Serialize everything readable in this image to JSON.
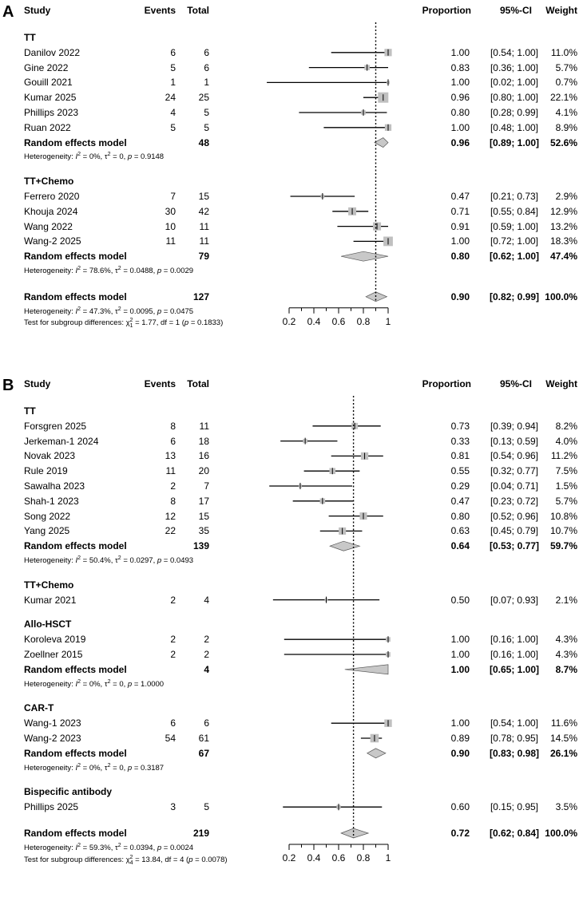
{
  "chart_data": [
    {
      "type": "forest",
      "panel": "A",
      "headers": {
        "study": "Study",
        "events": "Events",
        "total": "Total",
        "proportion": "Proportion",
        "ci": "95%-CI",
        "weight": "Weight"
      },
      "xlim": [
        0.2,
        1.0
      ],
      "ticks": [
        "0.2",
        "0.4",
        "0.6",
        "0.8",
        "1"
      ],
      "tick_values": [
        0.2,
        0.4,
        0.6,
        0.8,
        1.0
      ],
      "reference_line": 0.9,
      "subgroups": [
        {
          "name": "TT",
          "studies": [
            {
              "study": "Danilov 2022",
              "events": "6",
              "total": "6",
              "est": 1.0,
              "lo": 0.54,
              "hi": 1.0,
              "w": 11.0,
              "prop": "1.00",
              "ci": "[0.54; 1.00]",
              "weight": "11.0%"
            },
            {
              "study": "Gine 2022",
              "events": "5",
              "total": "6",
              "est": 0.83,
              "lo": 0.36,
              "hi": 1.0,
              "w": 5.7,
              "prop": "0.83",
              "ci": "[0.36; 1.00]",
              "weight": "5.7%"
            },
            {
              "study": "Gouill 2021",
              "events": "1",
              "total": "1",
              "est": 1.0,
              "lo": 0.02,
              "hi": 1.0,
              "w": 0.7,
              "prop": "1.00",
              "ci": "[0.02; 1.00]",
              "weight": "0.7%"
            },
            {
              "study": "Kumar 2025",
              "events": "24",
              "total": "25",
              "est": 0.96,
              "lo": 0.8,
              "hi": 1.0,
              "w": 22.1,
              "prop": "0.96",
              "ci": "[0.80; 1.00]",
              "weight": "22.1%"
            },
            {
              "study": "Phillips 2023",
              "events": "4",
              "total": "5",
              "est": 0.8,
              "lo": 0.28,
              "hi": 0.99,
              "w": 4.1,
              "prop": "0.80",
              "ci": "[0.28; 0.99]",
              "weight": "4.1%"
            },
            {
              "study": "Ruan 2022",
              "events": "5",
              "total": "5",
              "est": 1.0,
              "lo": 0.48,
              "hi": 1.0,
              "w": 8.9,
              "prop": "1.00",
              "ci": "[0.48; 1.00]",
              "weight": "8.9%"
            }
          ],
          "pooled": {
            "label": "Random effects model",
            "total": "48",
            "est": 0.96,
            "lo": 0.89,
            "hi": 1.0,
            "prop": "0.96",
            "ci": "[0.89; 1.00]",
            "weight": "52.6%"
          },
          "heterogeneity": {
            "prefix": "Heterogeneity: ",
            "i2": "0%",
            "tau2": "0",
            "p": "0.9148"
          }
        },
        {
          "name": "TT+Chemo",
          "studies": [
            {
              "study": "Ferrero 2020",
              "events": "7",
              "total": "15",
              "est": 0.47,
              "lo": 0.21,
              "hi": 0.73,
              "w": 2.9,
              "prop": "0.47",
              "ci": "[0.21; 0.73]",
              "weight": "2.9%"
            },
            {
              "study": "Khouja 2024",
              "events": "30",
              "total": "42",
              "est": 0.71,
              "lo": 0.55,
              "hi": 0.84,
              "w": 12.9,
              "prop": "0.71",
              "ci": "[0.55; 0.84]",
              "weight": "12.9%"
            },
            {
              "study": "Wang 2022",
              "events": "10",
              "total": "11",
              "est": 0.91,
              "lo": 0.59,
              "hi": 1.0,
              "w": 13.2,
              "prop": "0.91",
              "ci": "[0.59; 1.00]",
              "weight": "13.2%"
            },
            {
              "study": "Wang-2 2025",
              "events": "11",
              "total": "11",
              "est": 1.0,
              "lo": 0.72,
              "hi": 1.0,
              "w": 18.3,
              "prop": "1.00",
              "ci": "[0.72; 1.00]",
              "weight": "18.3%"
            }
          ],
          "pooled": {
            "label": "Random effects model",
            "total": "79",
            "est": 0.8,
            "lo": 0.62,
            "hi": 1.0,
            "prop": "0.80",
            "ci": "[0.62; 1.00]",
            "weight": "47.4%"
          },
          "heterogeneity": {
            "prefix": "Heterogeneity: ",
            "i2": "78.6%",
            "tau2": "0.0488",
            "p": "0.0029"
          }
        }
      ],
      "overall": {
        "label": "Random effects model",
        "total": "127",
        "est": 0.9,
        "lo": 0.82,
        "hi": 0.99,
        "prop": "0.90",
        "ci": "[0.82; 0.99]",
        "weight": "100.0%"
      },
      "overall_heterogeneity": {
        "prefix": "Heterogeneity: ",
        "i2": "47.3%",
        "tau2": "0.0095",
        "p": "0.0475"
      },
      "subgroup_test": {
        "prefix": "Test for subgroup differences: ",
        "chi_sub": "1",
        "chi2": "1.77",
        "df": "1",
        "p": "0.1833"
      }
    },
    {
      "type": "forest",
      "panel": "B",
      "headers": {
        "study": "Study",
        "events": "Events",
        "total": "Total",
        "proportion": "Proportion",
        "ci": "95%-CI",
        "weight": "Weight"
      },
      "xlim": [
        0.2,
        1.0
      ],
      "ticks": [
        "0.2",
        "0.4",
        "0.6",
        "0.8",
        "1"
      ],
      "tick_values": [
        0.2,
        0.4,
        0.6,
        0.8,
        1.0
      ],
      "reference_line": 0.72,
      "subgroups": [
        {
          "name": "TT",
          "studies": [
            {
              "study": "Forsgren 2025",
              "events": "8",
              "total": "11",
              "est": 0.73,
              "lo": 0.39,
              "hi": 0.94,
              "w": 8.2,
              "prop": "0.73",
              "ci": "[0.39; 0.94]",
              "weight": "8.2%"
            },
            {
              "study": "Jerkeman-1 2024",
              "events": "6",
              "total": "18",
              "est": 0.33,
              "lo": 0.13,
              "hi": 0.59,
              "w": 4.0,
              "prop": "0.33",
              "ci": "[0.13; 0.59]",
              "weight": "4.0%"
            },
            {
              "study": "Novak 2023",
              "events": "13",
              "total": "16",
              "est": 0.81,
              "lo": 0.54,
              "hi": 0.96,
              "w": 11.2,
              "prop": "0.81",
              "ci": "[0.54; 0.96]",
              "weight": "11.2%"
            },
            {
              "study": "Rule 2019",
              "events": "11",
              "total": "20",
              "est": 0.55,
              "lo": 0.32,
              "hi": 0.77,
              "w": 7.5,
              "prop": "0.55",
              "ci": "[0.32; 0.77]",
              "weight": "7.5%"
            },
            {
              "study": "Sawalha 2023",
              "events": "2",
              "total": "7",
              "est": 0.29,
              "lo": 0.04,
              "hi": 0.71,
              "w": 1.5,
              "prop": "0.29",
              "ci": "[0.04; 0.71]",
              "weight": "1.5%"
            },
            {
              "study": "Shah-1 2023",
              "events": "8",
              "total": "17",
              "est": 0.47,
              "lo": 0.23,
              "hi": 0.72,
              "w": 5.7,
              "prop": "0.47",
              "ci": "[0.23; 0.72]",
              "weight": "5.7%"
            },
            {
              "study": "Song 2022",
              "events": "12",
              "total": "15",
              "est": 0.8,
              "lo": 0.52,
              "hi": 0.96,
              "w": 10.8,
              "prop": "0.80",
              "ci": "[0.52; 0.96]",
              "weight": "10.8%"
            },
            {
              "study": "Yang 2025",
              "events": "22",
              "total": "35",
              "est": 0.63,
              "lo": 0.45,
              "hi": 0.79,
              "w": 10.7,
              "prop": "0.63",
              "ci": "[0.45; 0.79]",
              "weight": "10.7%"
            }
          ],
          "pooled": {
            "label": "Random effects model",
            "total": "139",
            "est": 0.64,
            "lo": 0.53,
            "hi": 0.77,
            "prop": "0.64",
            "ci": "[0.53; 0.77]",
            "weight": "59.7%"
          },
          "heterogeneity": {
            "prefix": "Heterogeneity: ",
            "i2": "50.4%",
            "tau2": "0.0297",
            "p": "0.0493"
          }
        },
        {
          "name": "TT+Chemo",
          "studies": [
            {
              "study": "Kumar 2021",
              "events": "2",
              "total": "4",
              "est": 0.5,
              "lo": 0.07,
              "hi": 0.93,
              "w": 2.1,
              "prop": "0.50",
              "ci": "[0.07; 0.93]",
              "weight": "2.1%"
            }
          ]
        },
        {
          "name": "Allo-HSCT",
          "studies": [
            {
              "study": "Koroleva 2019",
              "events": "2",
              "total": "2",
              "est": 1.0,
              "lo": 0.16,
              "hi": 1.0,
              "w": 4.3,
              "prop": "1.00",
              "ci": "[0.16; 1.00]",
              "weight": "4.3%"
            },
            {
              "study": "Zoellner 2015",
              "events": "2",
              "total": "2",
              "est": 1.0,
              "lo": 0.16,
              "hi": 1.0,
              "w": 4.3,
              "prop": "1.00",
              "ci": "[0.16; 1.00]",
              "weight": "4.3%"
            }
          ],
          "pooled": {
            "label": "Random effects model",
            "total": "4",
            "est": 1.0,
            "lo": 0.65,
            "hi": 1.0,
            "prop": "1.00",
            "ci": "[0.65; 1.00]",
            "weight": "8.7%"
          },
          "heterogeneity": {
            "prefix": "Heterogeneity: ",
            "i2": "0%",
            "tau2": "0",
            "p": "1.0000"
          }
        },
        {
          "name": "CAR-T",
          "studies": [
            {
              "study": "Wang-1 2023",
              "events": "6",
              "total": "6",
              "est": 1.0,
              "lo": 0.54,
              "hi": 1.0,
              "w": 11.6,
              "prop": "1.00",
              "ci": "[0.54; 1.00]",
              "weight": "11.6%"
            },
            {
              "study": "Wang-2 2023",
              "events": "54",
              "total": "61",
              "est": 0.89,
              "lo": 0.78,
              "hi": 0.95,
              "w": 14.5,
              "prop": "0.89",
              "ci": "[0.78; 0.95]",
              "weight": "14.5%"
            }
          ],
          "pooled": {
            "label": "Random effects model",
            "total": "67",
            "est": 0.9,
            "lo": 0.83,
            "hi": 0.98,
            "prop": "0.90",
            "ci": "[0.83; 0.98]",
            "weight": "26.1%"
          },
          "heterogeneity": {
            "prefix": "Heterogeneity: ",
            "i2": "0%",
            "tau2": "0",
            "p": "0.3187"
          }
        },
        {
          "name": "Bispecific antibody",
          "studies": [
            {
              "study": "Phillips 2025",
              "events": "3",
              "total": "5",
              "est": 0.6,
              "lo": 0.15,
              "hi": 0.95,
              "w": 3.5,
              "prop": "0.60",
              "ci": "[0.15; 0.95]",
              "weight": "3.5%"
            }
          ]
        }
      ],
      "overall": {
        "label": "Random effects model",
        "total": "219",
        "est": 0.72,
        "lo": 0.62,
        "hi": 0.84,
        "prop": "0.72",
        "ci": "[0.62; 0.84]",
        "weight": "100.0%"
      },
      "overall_heterogeneity": {
        "prefix": "Heterogeneity: ",
        "i2": "59.3%",
        "tau2": "0.0394",
        "p": "0.0024"
      },
      "subgroup_test": {
        "prefix": "Test for subgroup differences: ",
        "chi_sub": "4",
        "chi2": "13.84",
        "df": "4",
        "p": "0.0078"
      }
    }
  ],
  "colors": {
    "square": "#c0c0c0",
    "diamond": "#c8c8c8",
    "line": "#000000"
  }
}
